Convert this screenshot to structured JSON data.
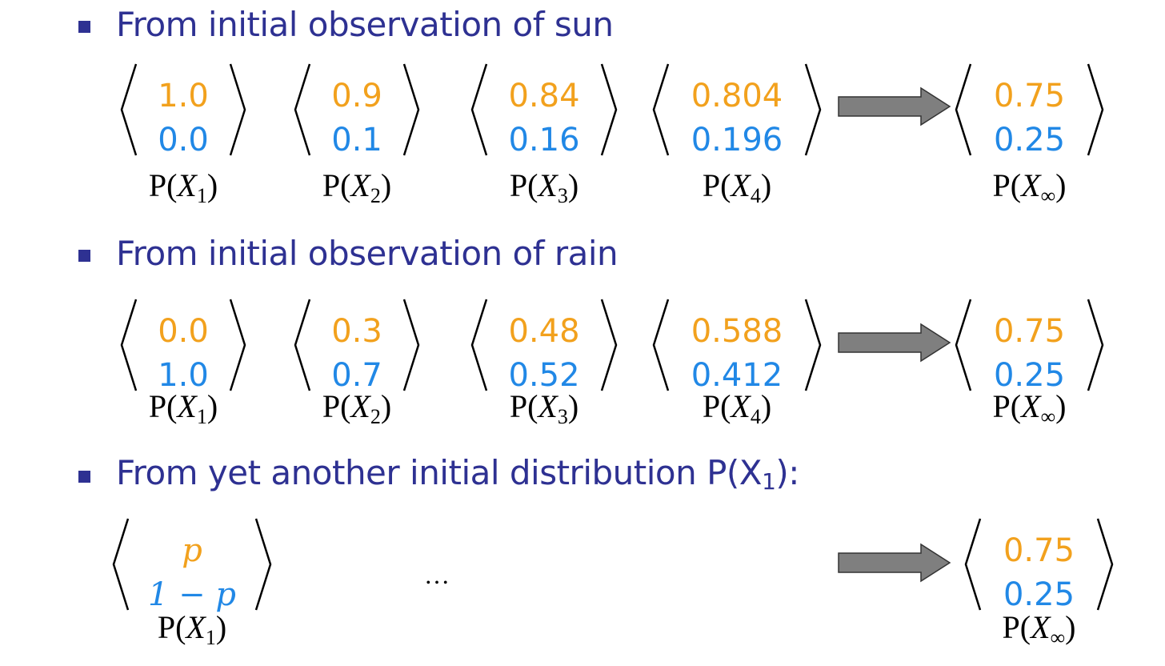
{
  "colors": {
    "heading": "#2e3192",
    "top_value": "#f2a11d",
    "bottom_value": "#2188e6",
    "arrow_fill": "#7f7f7f"
  },
  "sections": [
    {
      "heading": "From initial observation of sun",
      "vectors": [
        {
          "top": "1.0",
          "bottom": "0.0",
          "label_sub": "1"
        },
        {
          "top": "0.9",
          "bottom": "0.1",
          "label_sub": "2"
        },
        {
          "top": "0.84",
          "bottom": "0.16",
          "label_sub": "3"
        },
        {
          "top": "0.804",
          "bottom": "0.196",
          "label_sub": "4"
        }
      ],
      "limit": {
        "top": "0.75",
        "bottom": "0.25",
        "label_sub": "∞"
      }
    },
    {
      "heading": "From initial observation of rain",
      "vectors": [
        {
          "top": "0.0",
          "bottom": "1.0",
          "label_sub": "1"
        },
        {
          "top": "0.3",
          "bottom": "0.7",
          "label_sub": "2"
        },
        {
          "top": "0.48",
          "bottom": "0.52",
          "label_sub": "3"
        },
        {
          "top": "0.588",
          "bottom": "0.412",
          "label_sub": "4"
        }
      ],
      "limit": {
        "top": "0.75",
        "bottom": "0.25",
        "label_sub": "∞"
      }
    },
    {
      "heading_main": "From yet another initial distribution P(X",
      "heading_sub": "1",
      "heading_end": "):",
      "vectors": [
        {
          "top": "p",
          "bottom": "1 − p",
          "label_sub": "1"
        }
      ],
      "ellipsis": "…",
      "limit": {
        "top": "0.75",
        "bottom": "0.25",
        "label_sub": "∞"
      }
    }
  ],
  "label_prefix": "P(",
  "label_var": "X",
  "label_suffix": ")"
}
